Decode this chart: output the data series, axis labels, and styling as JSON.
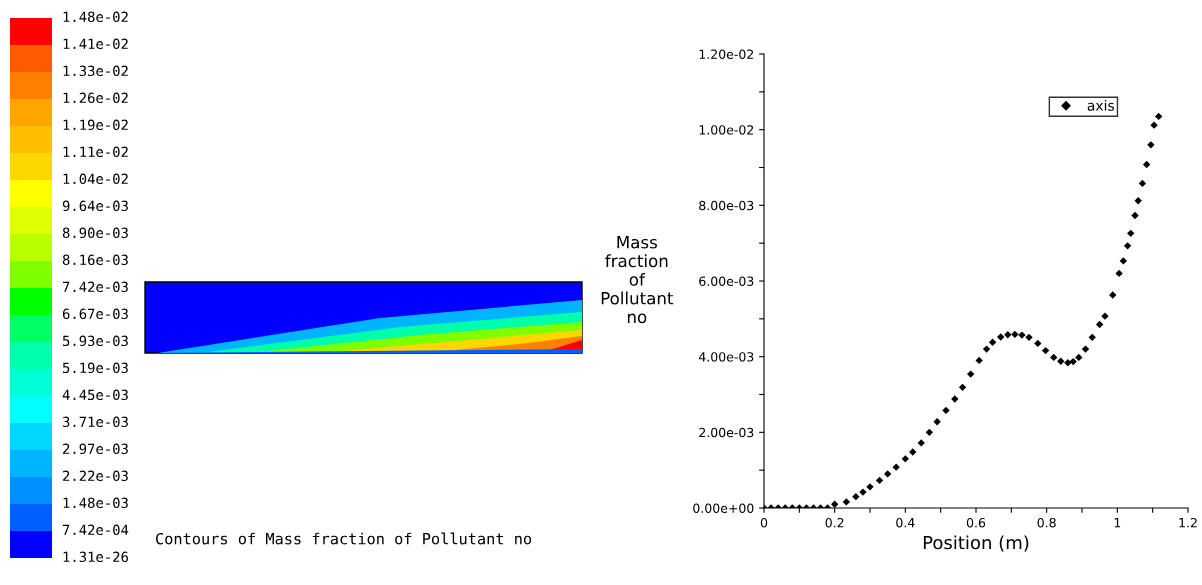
{
  "chart_data": [
    {
      "type": "other",
      "annotations": [
        "Contours of Mass fraction of Pollutant no"
      ],
      "categories": [
        "1.48e-02",
        "1.41e-02",
        "1.33e-02",
        "1.26e-02",
        "1.19e-02",
        "1.11e-02",
        "1.04e-02",
        "9.64e-03",
        "8.90e-03",
        "8.16e-03",
        "7.42e-03",
        "6.67e-03",
        "5.93e-03",
        "5.19e-03",
        "4.45e-03",
        "3.71e-03",
        "2.97e-03",
        "2.22e-03",
        "1.48e-03",
        "7.42e-04",
        "1.31e-26"
      ],
      "colors": [
        "#ff0000",
        "#ff5a00",
        "#ff8000",
        "#ffa500",
        "#ffbe00",
        "#ffd700",
        "#ffff00",
        "#e0ff00",
        "#b8ff00",
        "#80ff00",
        "#00ff00",
        "#00ff66",
        "#00ffaa",
        "#00ffd4",
        "#00ffff",
        "#00d8ff",
        "#00b4ff",
        "#0090ff",
        "#0060ff",
        "#0000ff"
      ]
    },
    {
      "type": "scatter",
      "xlabel": "Position (m)",
      "ylabel": "Mass\nfraction\nof\nPollutant\nno",
      "legend": "top right",
      "marker": "diamond",
      "x": [
        0,
        0.02,
        0.04,
        0.06,
        0.08,
        0.1,
        0.12,
        0.14,
        0.16,
        0.18,
        0.2,
        0.233,
        0.26,
        0.28,
        0.3,
        0.327,
        0.35,
        0.374,
        0.4,
        0.421,
        0.445,
        0.468,
        0.49,
        0.515,
        0.54,
        0.562,
        0.585,
        0.609,
        0.63,
        0.647,
        0.67,
        0.69,
        0.71,
        0.73,
        0.75,
        0.775,
        0.797,
        0.82,
        0.84,
        0.86,
        0.875,
        0.891,
        0.91,
        0.929,
        0.95,
        0.965,
        0.987,
        1.005,
        1.017,
        1.029,
        1.038,
        1.05,
        1.059,
        1.071,
        1.083,
        1.095,
        1.104,
        1.117
      ],
      "series": [
        {
          "name": "axis",
          "color": "#000000",
          "values": [
            0,
            0,
            0,
            0,
            0,
            0,
            0,
            0,
            0,
            0,
            0.0001,
            0.00016,
            0.0003,
            0.00042,
            0.00056,
            0.00073,
            0.0009,
            0.00108,
            0.0013,
            0.00148,
            0.00172,
            0.002,
            0.00228,
            0.00258,
            0.00288,
            0.00319,
            0.00354,
            0.0039,
            0.0042,
            0.00438,
            0.00452,
            0.00458,
            0.00459,
            0.00457,
            0.00451,
            0.00435,
            0.00416,
            0.00398,
            0.00388,
            0.00384,
            0.00387,
            0.00398,
            0.0042,
            0.00451,
            0.00485,
            0.00507,
            0.00563,
            0.0062,
            0.00653,
            0.00693,
            0.00726,
            0.00773,
            0.00812,
            0.00858,
            0.00908,
            0.0096,
            0.01012,
            0.01035
          ]
        }
      ],
      "xlim": [
        0,
        1.2
      ],
      "ylim": [
        0,
        0.012
      ],
      "xticks": [
        0,
        {
          "value": 0.1,
          "label": null
        },
        {
          "value": 0.2,
          "label": "0.2"
        },
        {
          "value": 0.3,
          "label": null
        },
        {
          "value": 0.4,
          "label": "0.4"
        },
        {
          "value": 0.5,
          "label": null
        },
        {
          "value": 0.6,
          "label": "0.6"
        },
        {
          "value": 0.7,
          "label": null
        },
        {
          "value": 0.8,
          "label": "0.8"
        },
        {
          "value": 0.9,
          "label": null
        },
        1,
        {
          "value": 1.1,
          "label": null
        },
        {
          "value": 1.2,
          "label": "1.2"
        }
      ],
      "yticks": [
        {
          "value": 0,
          "label": "0.00e+00"
        },
        {
          "value": 0.001,
          "label": null
        },
        {
          "value": 0.002,
          "label": "2.00e-03"
        },
        {
          "value": 0.003,
          "label": null
        },
        {
          "value": 0.004,
          "label": "4.00e-03"
        },
        {
          "value": 0.005,
          "label": null
        },
        {
          "value": 0.006,
          "label": "6.00e-03"
        },
        {
          "value": 0.007,
          "label": null
        },
        {
          "value": 0.008,
          "label": "8.00e-03"
        },
        {
          "value": 0.009,
          "label": null
        },
        {
          "value": 0.01,
          "label": "1.00e-02"
        },
        {
          "value": 0.011,
          "label": null
        },
        {
          "value": 0.012,
          "label": "1.20e-02"
        }
      ]
    }
  ]
}
